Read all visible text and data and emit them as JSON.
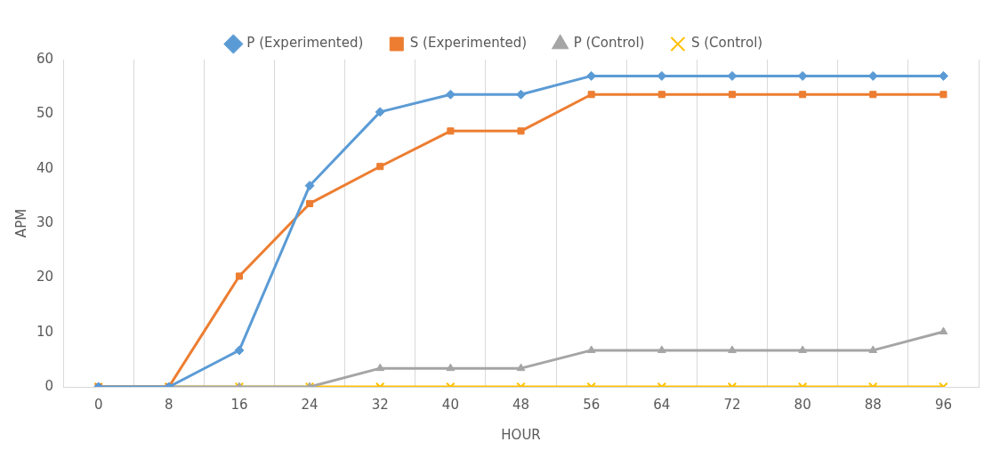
{
  "chart_data": {
    "type": "line",
    "xlabel": "HOUR",
    "ylabel": "APM",
    "categories": [
      "0",
      "8",
      "16",
      "24",
      "32",
      "40",
      "48",
      "56",
      "64",
      "72",
      "80",
      "88",
      "96"
    ],
    "ylim": [
      0,
      60
    ],
    "yticks": [
      0,
      10,
      20,
      30,
      40,
      50,
      60
    ],
    "grid": "x",
    "legend": "top",
    "line_style": "solid",
    "series": [
      {
        "name": "P (Experimented)",
        "color": "#5b9bd5",
        "marker": "diamond",
        "values": [
          0,
          0,
          6.7,
          36.9,
          50.4,
          53.6,
          53.6,
          57,
          57,
          57,
          57,
          57,
          57
        ]
      },
      {
        "name": "S (Experimented)",
        "color": "#ed7d31",
        "marker": "square",
        "values": [
          0,
          0,
          20.3,
          33.6,
          40.4,
          46.9,
          46.9,
          53.6,
          53.6,
          53.6,
          53.6,
          53.6,
          53.6
        ]
      },
      {
        "name": "P (Control)",
        "color": "#a5a5a5",
        "marker": "triangle",
        "values": [
          0,
          0,
          0,
          0,
          3.4,
          3.4,
          3.4,
          6.7,
          6.7,
          6.7,
          6.7,
          6.7,
          10.1
        ]
      },
      {
        "name": "S (Control)",
        "color": "#ffc000",
        "marker": "cross",
        "values": [
          0,
          0,
          0,
          0,
          0,
          0,
          0,
          0,
          0,
          0,
          0,
          0,
          0
        ]
      }
    ]
  }
}
